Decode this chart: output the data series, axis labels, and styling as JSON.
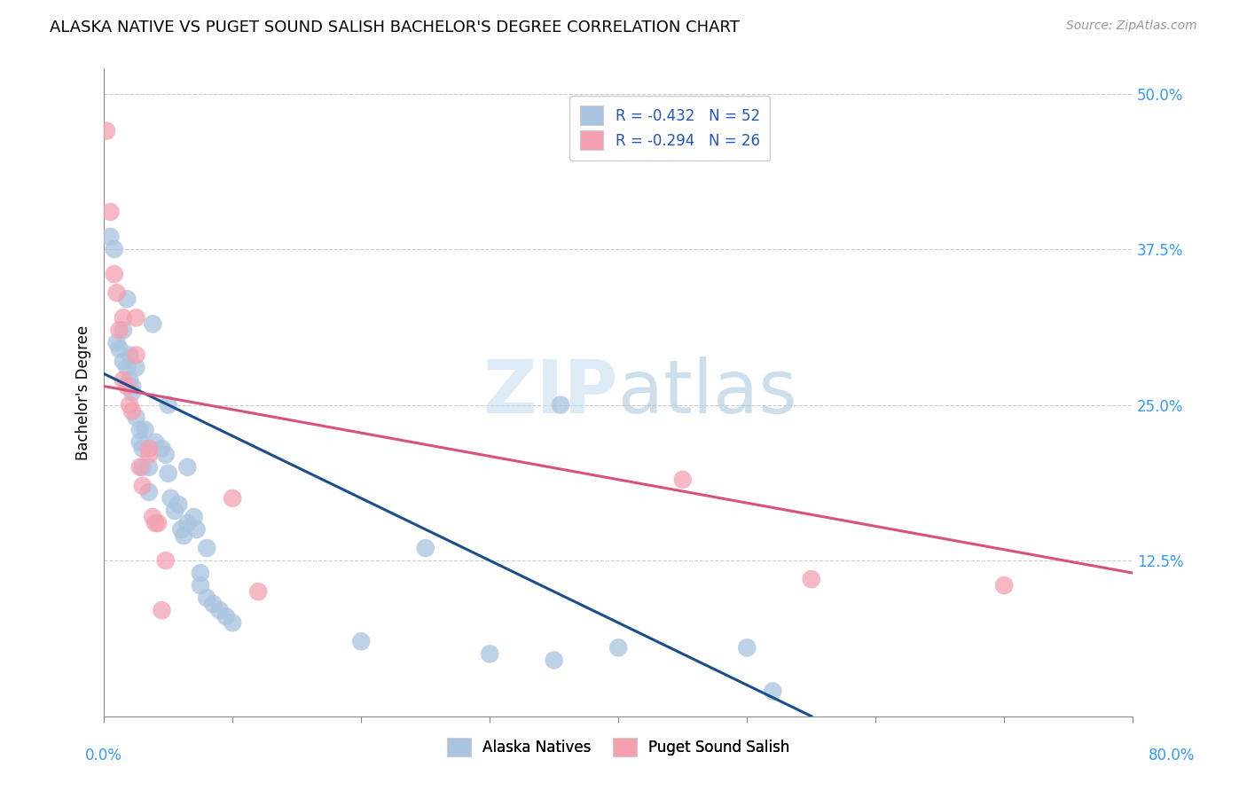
{
  "title": "ALASKA NATIVE VS PUGET SOUND SALISH BACHELOR'S DEGREE CORRELATION CHART",
  "source": "Source: ZipAtlas.com",
  "ylabel": "Bachelor's Degree",
  "ytick_labels": [
    "12.5%",
    "25.0%",
    "37.5%",
    "50.0%"
  ],
  "ytick_values": [
    12.5,
    25.0,
    37.5,
    50.0
  ],
  "xlim": [
    0,
    80
  ],
  "ylim": [
    0,
    52
  ],
  "legend_blue_label": "R = -0.432   N = 52",
  "legend_pink_label": "R = -0.294   N = 26",
  "legend_bottom_blue": "Alaska Natives",
  "legend_bottom_pink": "Puget Sound Salish",
  "blue_color": "#a8c4e0",
  "pink_color": "#f4a0b0",
  "line_blue": "#1a4f8a",
  "line_pink": "#d9527a",
  "blue_line_x": [
    0,
    55
  ],
  "blue_line_y": [
    27.5,
    0
  ],
  "pink_line_x": [
    0,
    80
  ],
  "pink_line_y": [
    26.5,
    11.5
  ],
  "blue_scatter": [
    [
      0.5,
      38.5
    ],
    [
      0.8,
      37.5
    ],
    [
      1.0,
      30.0
    ],
    [
      1.2,
      29.5
    ],
    [
      1.5,
      31.0
    ],
    [
      1.5,
      28.5
    ],
    [
      1.8,
      33.5
    ],
    [
      1.8,
      28.0
    ],
    [
      2.0,
      29.0
    ],
    [
      2.0,
      27.0
    ],
    [
      2.2,
      26.5
    ],
    [
      2.2,
      26.0
    ],
    [
      2.5,
      28.0
    ],
    [
      2.5,
      24.0
    ],
    [
      2.8,
      23.0
    ],
    [
      2.8,
      22.0
    ],
    [
      3.0,
      21.5
    ],
    [
      3.0,
      20.0
    ],
    [
      3.2,
      23.0
    ],
    [
      3.5,
      20.0
    ],
    [
      3.5,
      18.0
    ],
    [
      3.8,
      31.5
    ],
    [
      4.0,
      22.0
    ],
    [
      4.5,
      21.5
    ],
    [
      4.8,
      21.0
    ],
    [
      5.0,
      25.0
    ],
    [
      5.0,
      19.5
    ],
    [
      5.2,
      17.5
    ],
    [
      5.5,
      16.5
    ],
    [
      5.8,
      17.0
    ],
    [
      6.0,
      15.0
    ],
    [
      6.2,
      14.5
    ],
    [
      6.5,
      15.5
    ],
    [
      6.5,
      20.0
    ],
    [
      7.0,
      16.0
    ],
    [
      7.2,
      15.0
    ],
    [
      7.5,
      11.5
    ],
    [
      7.5,
      10.5
    ],
    [
      8.0,
      13.5
    ],
    [
      8.0,
      9.5
    ],
    [
      8.5,
      9.0
    ],
    [
      9.0,
      8.5
    ],
    [
      9.5,
      8.0
    ],
    [
      10.0,
      7.5
    ],
    [
      20.0,
      6.0
    ],
    [
      25.0,
      13.5
    ],
    [
      30.0,
      5.0
    ],
    [
      35.0,
      4.5
    ],
    [
      35.5,
      25.0
    ],
    [
      40.0,
      5.5
    ],
    [
      50.0,
      5.5
    ],
    [
      52.0,
      2.0
    ]
  ],
  "pink_scatter": [
    [
      0.2,
      47.0
    ],
    [
      0.5,
      40.5
    ],
    [
      0.8,
      35.5
    ],
    [
      1.0,
      34.0
    ],
    [
      1.2,
      31.0
    ],
    [
      1.5,
      32.0
    ],
    [
      1.5,
      27.0
    ],
    [
      1.8,
      26.5
    ],
    [
      2.0,
      25.0
    ],
    [
      2.2,
      24.5
    ],
    [
      2.5,
      32.0
    ],
    [
      2.5,
      29.0
    ],
    [
      2.8,
      20.0
    ],
    [
      3.0,
      18.5
    ],
    [
      3.5,
      21.5
    ],
    [
      3.5,
      21.0
    ],
    [
      3.8,
      16.0
    ],
    [
      4.0,
      15.5
    ],
    [
      4.2,
      15.5
    ],
    [
      4.5,
      8.5
    ],
    [
      4.8,
      12.5
    ],
    [
      10.0,
      17.5
    ],
    [
      12.0,
      10.0
    ],
    [
      45.0,
      19.0
    ],
    [
      55.0,
      11.0
    ],
    [
      70.0,
      10.5
    ]
  ]
}
